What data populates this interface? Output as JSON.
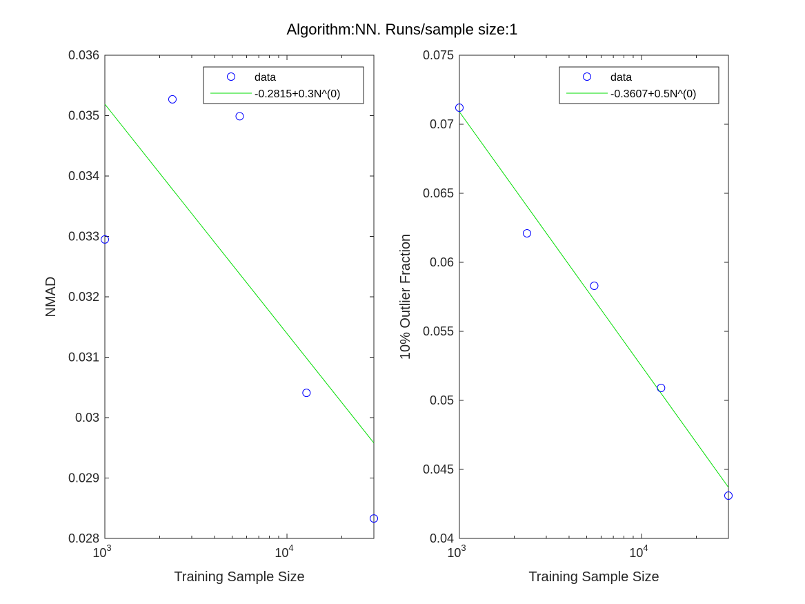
{
  "figure_title": "Algorithm:NN. Runs/sample size:1",
  "colors": {
    "data_marker": "#0000ff",
    "fit_line": "#00dd00",
    "axes": "#262626"
  },
  "chart_data": [
    {
      "type": "scatter",
      "xscale": "log",
      "xlabel": "Training Sample Size",
      "ylabel": "NMAD",
      "xlim": [
        1000,
        30000
      ],
      "ylim": [
        0.028,
        0.036
      ],
      "yticks": [
        "0.028",
        "0.029",
        "0.03",
        "0.031",
        "0.032",
        "0.033",
        "0.034",
        "0.035",
        "0.036"
      ],
      "xticks": [
        {
          "base": "10",
          "exp": "3"
        },
        {
          "base": "10",
          "exp": "4"
        }
      ],
      "legend_position": "top-right",
      "series": [
        {
          "name": "data",
          "marker": "circle",
          "x": [
            1000,
            2350,
            5500,
            12800,
            30000
          ],
          "y": [
            0.03295,
            0.03527,
            0.03499,
            0.03041,
            0.02833
          ]
        },
        {
          "name": "-0.2815+0.3N^(0)",
          "marker": "line",
          "x": [
            1000,
            30000
          ],
          "y": [
            0.03519,
            0.02958
          ]
        }
      ]
    },
    {
      "type": "scatter",
      "xscale": "log",
      "xlabel": "Training Sample Size",
      "ylabel": "10% Outlier Fraction",
      "xlim": [
        1000,
        30000
      ],
      "ylim": [
        0.04,
        0.075
      ],
      "yticks": [
        "0.04",
        "0.045",
        "0.05",
        "0.055",
        "0.06",
        "0.065",
        "0.07",
        "0.075"
      ],
      "xticks": [
        {
          "base": "10",
          "exp": "3"
        },
        {
          "base": "10",
          "exp": "4"
        }
      ],
      "legend_position": "top-right",
      "series": [
        {
          "name": "data",
          "marker": "circle",
          "x": [
            1000,
            2350,
            5500,
            12800,
            30000
          ],
          "y": [
            0.0712,
            0.0621,
            0.0583,
            0.0509,
            0.0431
          ]
        },
        {
          "name": "-0.3607+0.5N^(0)",
          "marker": "line",
          "x": [
            1000,
            30000
          ],
          "y": [
            0.0709,
            0.0437
          ]
        }
      ]
    }
  ]
}
